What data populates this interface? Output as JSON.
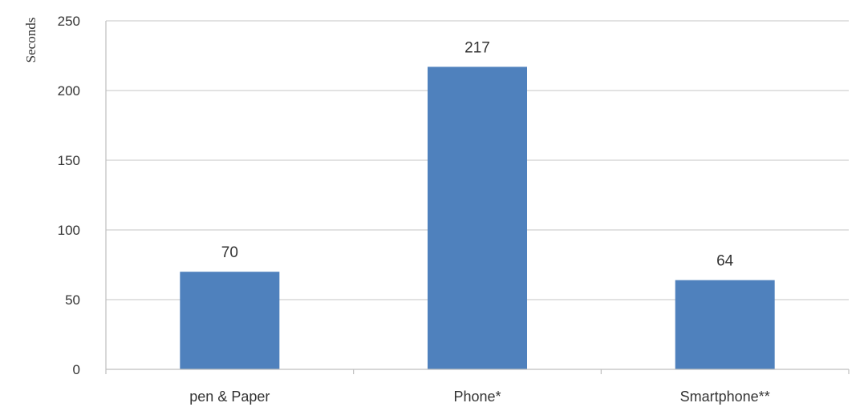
{
  "chart_data": {
    "type": "bar",
    "categories": [
      "pen & Paper",
      "Phone*",
      "Smartphone**"
    ],
    "values": [
      70,
      217,
      64
    ],
    "data_labels": [
      "70",
      "217",
      "64"
    ],
    "title": "",
    "xlabel": "",
    "ylabel": "Seconds",
    "ylim": [
      0,
      250
    ],
    "yticks": [
      0,
      50,
      100,
      150,
      200,
      250
    ],
    "grid": true,
    "bar_color": "#4f81bd"
  }
}
